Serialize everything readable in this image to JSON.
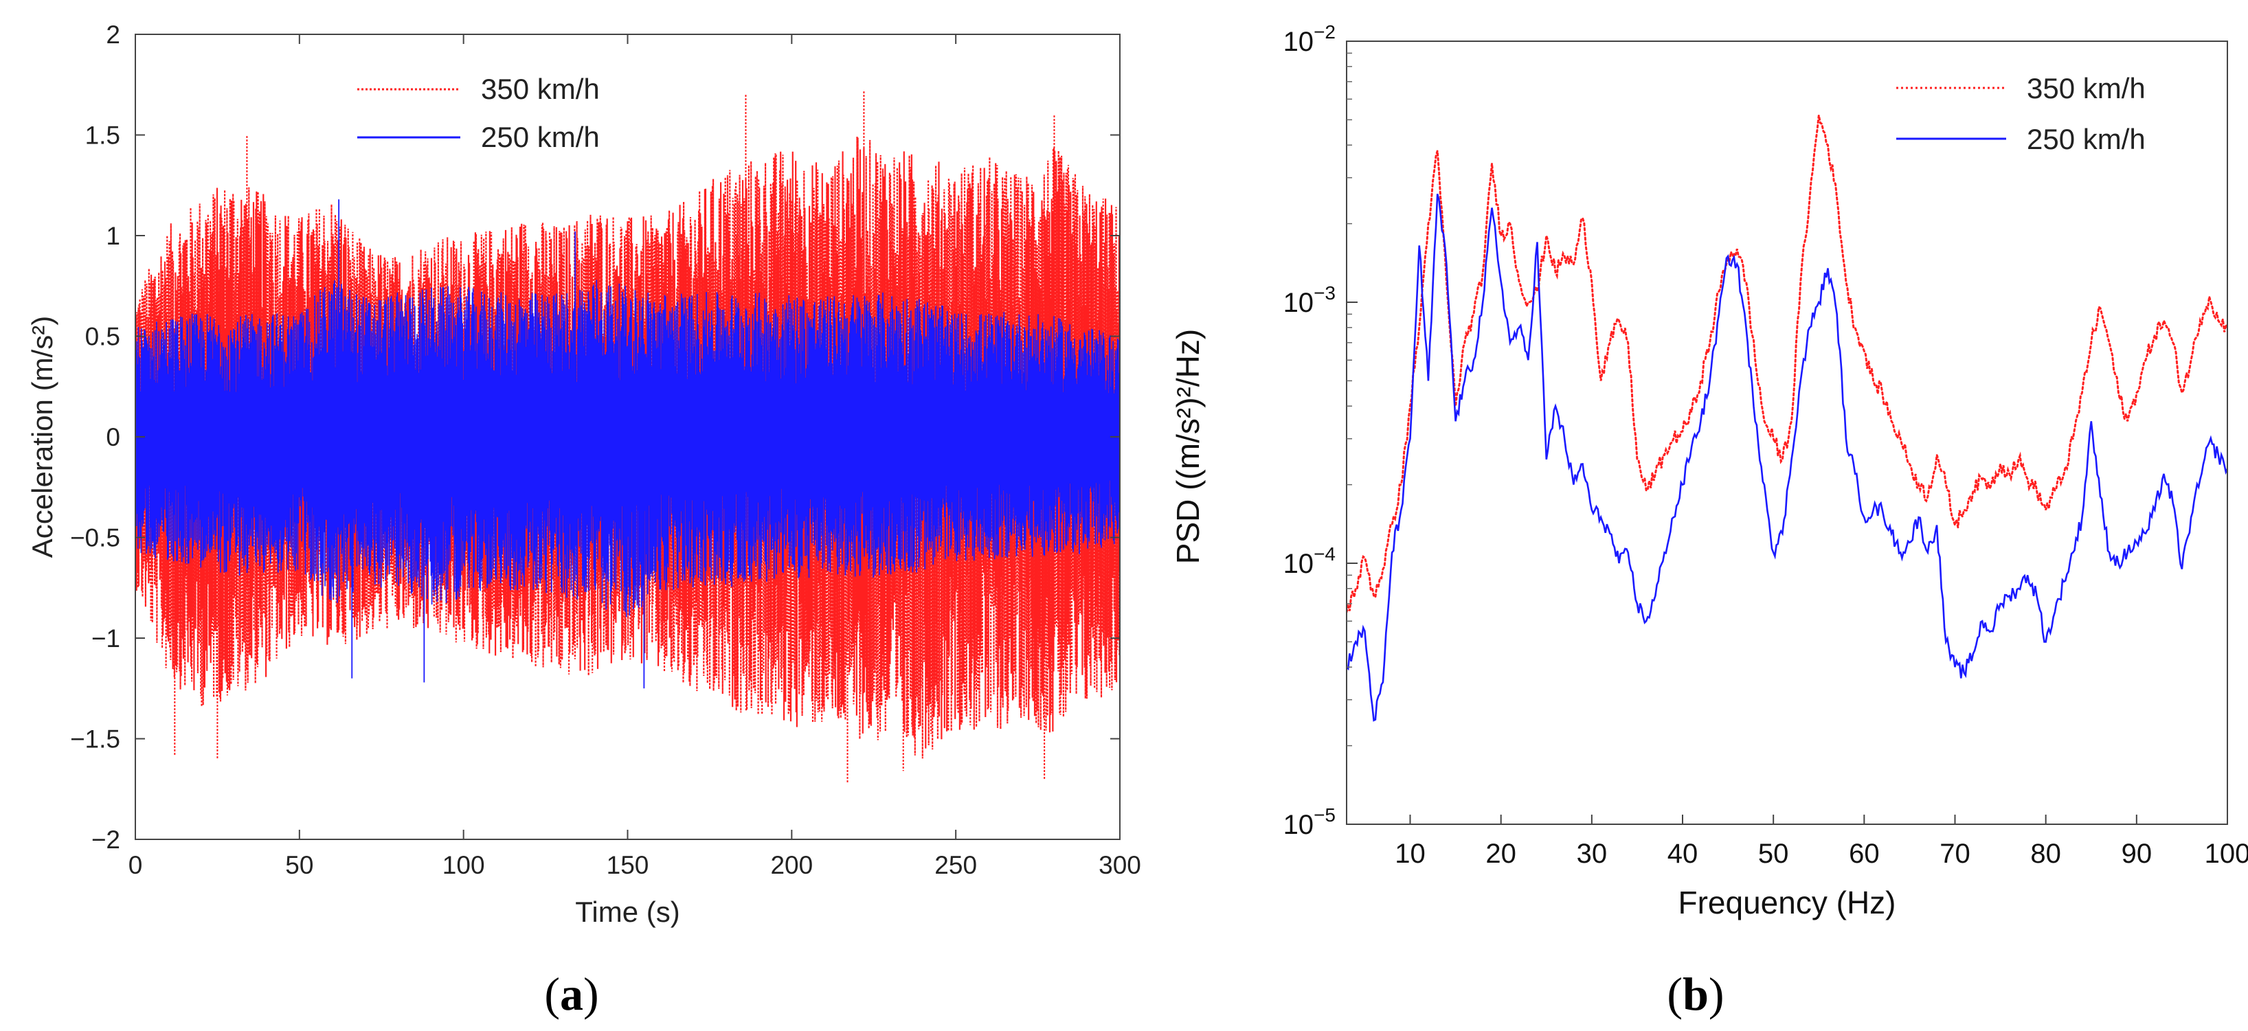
{
  "figure": {
    "panels": [
      "(a)",
      "(b)"
    ]
  },
  "chart_data": [
    {
      "panel": "(a)",
      "type": "line",
      "title": "",
      "xlabel": "Time  (s)",
      "ylabel": "Acceleration  (m/s²)",
      "xlim": [
        0,
        300
      ],
      "ylim": [
        -2,
        2
      ],
      "xticks": [
        0,
        50,
        100,
        150,
        200,
        250,
        300
      ],
      "xtick_labels": [
        "0",
        "50",
        "100",
        "150",
        "200",
        "250",
        "300"
      ],
      "yticks": [
        -2,
        -1.5,
        -1,
        -0.5,
        0,
        0.5,
        1,
        1.5,
        2
      ],
      "ytick_labels": [
        "−2",
        "−1.5",
        "−1",
        "−0.5",
        "0",
        "0.5",
        "1",
        "1.5",
        "2"
      ],
      "grid": false,
      "legend_position": "top-left",
      "series": [
        {
          "name": "350 km/h",
          "color": "#ff2020",
          "style": "dotted",
          "envelope_t": [
            0,
            10,
            20,
            30,
            40,
            50,
            60,
            70,
            80,
            90,
            100,
            110,
            120,
            130,
            140,
            150,
            160,
            170,
            180,
            190,
            200,
            210,
            220,
            230,
            240,
            250,
            260,
            270,
            280,
            290,
            300
          ],
          "envelope_upper": [
            0.7,
            1.05,
            1.2,
            1.3,
            1.2,
            1.1,
            1.2,
            0.95,
            0.9,
            1.0,
            1.0,
            1.05,
            1.1,
            1.05,
            1.15,
            1.1,
            1.1,
            1.2,
            1.35,
            1.4,
            1.45,
            1.35,
            1.5,
            1.45,
            1.4,
            1.35,
            1.4,
            1.3,
            1.45,
            1.25,
            1.15
          ],
          "envelope_lower": [
            -0.75,
            -1.2,
            -1.35,
            -1.3,
            -1.2,
            -1.0,
            -1.05,
            -1.0,
            -0.95,
            -1.0,
            -1.05,
            -1.1,
            -1.15,
            -1.2,
            -1.2,
            -1.1,
            -1.2,
            -1.3,
            -1.35,
            -1.4,
            -1.45,
            -1.45,
            -1.5,
            -1.55,
            -1.6,
            -1.45,
            -1.5,
            -1.4,
            -1.5,
            -1.35,
            -1.25
          ],
          "peaks": [
            [
              12,
              -1.58
            ],
            [
              25,
              -1.6
            ],
            [
              34,
              1.5
            ],
            [
              186,
              1.7
            ],
            [
              222,
              1.72
            ],
            [
              217,
              -1.72
            ],
            [
              234,
              -1.66
            ],
            [
              277,
              -1.7
            ],
            [
              280,
              1.6
            ]
          ]
        },
        {
          "name": "250 km/h",
          "color": "#1a1aff",
          "style": "solid",
          "envelope_t": [
            0,
            10,
            20,
            30,
            40,
            50,
            60,
            70,
            80,
            90,
            100,
            110,
            120,
            130,
            140,
            150,
            160,
            170,
            180,
            190,
            200,
            210,
            220,
            230,
            240,
            250,
            260,
            270,
            280,
            290,
            300
          ],
          "envelope_upper": [
            0.55,
            0.6,
            0.62,
            0.6,
            0.62,
            0.62,
            0.8,
            0.7,
            0.72,
            0.75,
            0.75,
            0.72,
            0.72,
            0.72,
            0.8,
            0.75,
            0.72,
            0.72,
            0.72,
            0.72,
            0.72,
            0.7,
            0.72,
            0.72,
            0.7,
            0.62,
            0.62,
            0.62,
            0.6,
            0.55,
            0.5
          ],
          "envelope_lower": [
            -0.58,
            -0.62,
            -0.65,
            -0.7,
            -0.68,
            -0.68,
            -0.85,
            -0.75,
            -0.75,
            -0.85,
            -0.8,
            -0.75,
            -0.78,
            -0.8,
            -0.85,
            -0.9,
            -0.78,
            -0.75,
            -0.75,
            -0.72,
            -0.72,
            -0.7,
            -0.7,
            -0.7,
            -0.68,
            -0.62,
            -0.62,
            -0.6,
            -0.6,
            -0.58,
            -0.55
          ],
          "peaks": [
            [
              62,
              1.18
            ],
            [
              66,
              -1.2
            ],
            [
              88,
              -1.22
            ],
            [
              134,
              1.02
            ],
            [
              155,
              -1.25
            ]
          ]
        }
      ]
    },
    {
      "panel": "(b)",
      "type": "line",
      "title": "",
      "xlabel": "Frequency (Hz)",
      "ylabel": "PSD  ((m/s²)²/Hz)",
      "yscale": "log",
      "xlim": [
        3,
        100
      ],
      "ylim": [
        1e-05,
        0.01
      ],
      "xticks": [
        10,
        20,
        30,
        40,
        50,
        60,
        70,
        80,
        90,
        100
      ],
      "xtick_labels": [
        "10",
        "20",
        "30",
        "40",
        "50",
        "60",
        "70",
        "80",
        "90",
        "100"
      ],
      "yticks": [
        1e-05,
        0.0001,
        0.001,
        0.01
      ],
      "ytick_base": [
        "10",
        "10",
        "10",
        "10"
      ],
      "ytick_exp": [
        "−5",
        "−4",
        "−3",
        "−2"
      ],
      "grid": false,
      "legend_position": "top-right",
      "series": [
        {
          "name": "350 km/h",
          "color": "#ff2020",
          "style": "dotted",
          "x": [
            3,
            4,
            5,
            6,
            7,
            8,
            9,
            10,
            11,
            12,
            13,
            14,
            15,
            16,
            17,
            18,
            19,
            20,
            21,
            22,
            23,
            24,
            25,
            26,
            27,
            28,
            29,
            30,
            31,
            32,
            33,
            34,
            35,
            36,
            37,
            38,
            39,
            40,
            41,
            42,
            43,
            44,
            45,
            46,
            47,
            48,
            49,
            50,
            51,
            52,
            53,
            54,
            55,
            56,
            57,
            58,
            59,
            60,
            61,
            62,
            63,
            64,
            65,
            66,
            67,
            68,
            69,
            70,
            71,
            72,
            73,
            74,
            75,
            76,
            77,
            78,
            79,
            80,
            81,
            82,
            83,
            84,
            85,
            86,
            87,
            88,
            89,
            90,
            91,
            92,
            93,
            94,
            95,
            96,
            97,
            98,
            99,
            100
          ],
          "y": [
            6.5e-05,
            8e-05,
            0.000105,
            7.5e-05,
            9.5e-05,
            0.00014,
            0.0002,
            0.0004,
            0.0008,
            0.002,
            0.0038,
            0.0012,
            0.0004,
            0.0007,
            0.0009,
            0.0013,
            0.0034,
            0.0018,
            0.002,
            0.0012,
            0.001,
            0.0011,
            0.0018,
            0.0013,
            0.0015,
            0.0014,
            0.0021,
            0.0012,
            0.0005,
            0.0007,
            0.00085,
            0.0007,
            0.00025,
            0.00019,
            0.00022,
            0.00026,
            0.0003,
            0.00032,
            0.00038,
            0.0005,
            0.0007,
            0.0011,
            0.0015,
            0.0016,
            0.0012,
            0.0006,
            0.00035,
            0.0003,
            0.00025,
            0.00035,
            0.0012,
            0.0025,
            0.0052,
            0.004,
            0.0025,
            0.0012,
            0.0008,
            0.00065,
            0.0005,
            0.00045,
            0.00035,
            0.0003,
            0.00024,
            0.0002,
            0.00018,
            0.00026,
            0.0002,
            0.00014,
            0.00016,
            0.00019,
            0.00021,
            0.0002,
            0.00024,
            0.00022,
            0.00025,
            0.00021,
            0.00019,
            0.00016,
            0.00019,
            0.00022,
            0.0003,
            0.00045,
            0.0007,
            0.00095,
            0.0007,
            0.00045,
            0.00035,
            0.00045,
            0.0006,
            0.00075,
            0.00085,
            0.0007,
            0.00045,
            0.0006,
            0.00085,
            0.00105,
            0.00085,
            0.0008
          ]
        },
        {
          "name": "250 km/h",
          "color": "#1a1aff",
          "style": "solid",
          "x": [
            3,
            4,
            5,
            6,
            7,
            8,
            9,
            10,
            11,
            12,
            13,
            14,
            15,
            16,
            17,
            18,
            19,
            20,
            21,
            22,
            23,
            24,
            25,
            26,
            27,
            28,
            29,
            30,
            31,
            32,
            33,
            34,
            35,
            36,
            37,
            38,
            39,
            40,
            41,
            42,
            43,
            44,
            45,
            46,
            47,
            48,
            49,
            50,
            51,
            52,
            53,
            54,
            55,
            56,
            57,
            58,
            59,
            60,
            61,
            62,
            63,
            64,
            65,
            66,
            67,
            68,
            69,
            70,
            71,
            72,
            73,
            74,
            75,
            76,
            77,
            78,
            79,
            80,
            81,
            82,
            83,
            84,
            85,
            86,
            87,
            88,
            89,
            90,
            91,
            92,
            93,
            94,
            95,
            96,
            97,
            98,
            99,
            100
          ],
          "y": [
            4e-05,
            5e-05,
            5.5e-05,
            2.5e-05,
            3.5e-05,
            0.00011,
            0.00016,
            0.0003,
            0.00165,
            0.0005,
            0.0026,
            0.0014,
            0.00035,
            0.0005,
            0.0006,
            0.001,
            0.0023,
            0.0012,
            0.0007,
            0.0008,
            0.0006,
            0.0017,
            0.00025,
            0.0004,
            0.0003,
            0.0002,
            0.00024,
            0.00016,
            0.00015,
            0.00013,
            0.0001,
            0.00011,
            7e-05,
            6e-05,
            7.5e-05,
            0.00011,
            0.00015,
            0.0002,
            0.00028,
            0.00035,
            0.0005,
            0.0009,
            0.0015,
            0.0014,
            0.0008,
            0.00035,
            0.0002,
            0.00011,
            0.00013,
            0.00025,
            0.0005,
            0.0008,
            0.001,
            0.00135,
            0.0009,
            0.0003,
            0.00022,
            0.00015,
            0.00016,
            0.00016,
            0.00013,
            0.00011,
            0.00012,
            0.00015,
            0.00011,
            0.00014,
            5e-05,
            4e-05,
            3.8e-05,
            4.5e-05,
            6e-05,
            5.5e-05,
            7e-05,
            7.5e-05,
            8e-05,
            9e-05,
            7.5e-05,
            5e-05,
            6.5e-05,
            8.5e-05,
            0.00011,
            0.00015,
            0.00035,
            0.00018,
            0.00011,
            0.0001,
            0.00011,
            0.00012,
            0.00013,
            0.00016,
            0.00022,
            0.00017,
            9.5e-05,
            0.00015,
            0.00021,
            0.00029,
            0.00026,
            0.00023
          ]
        }
      ]
    }
  ]
}
